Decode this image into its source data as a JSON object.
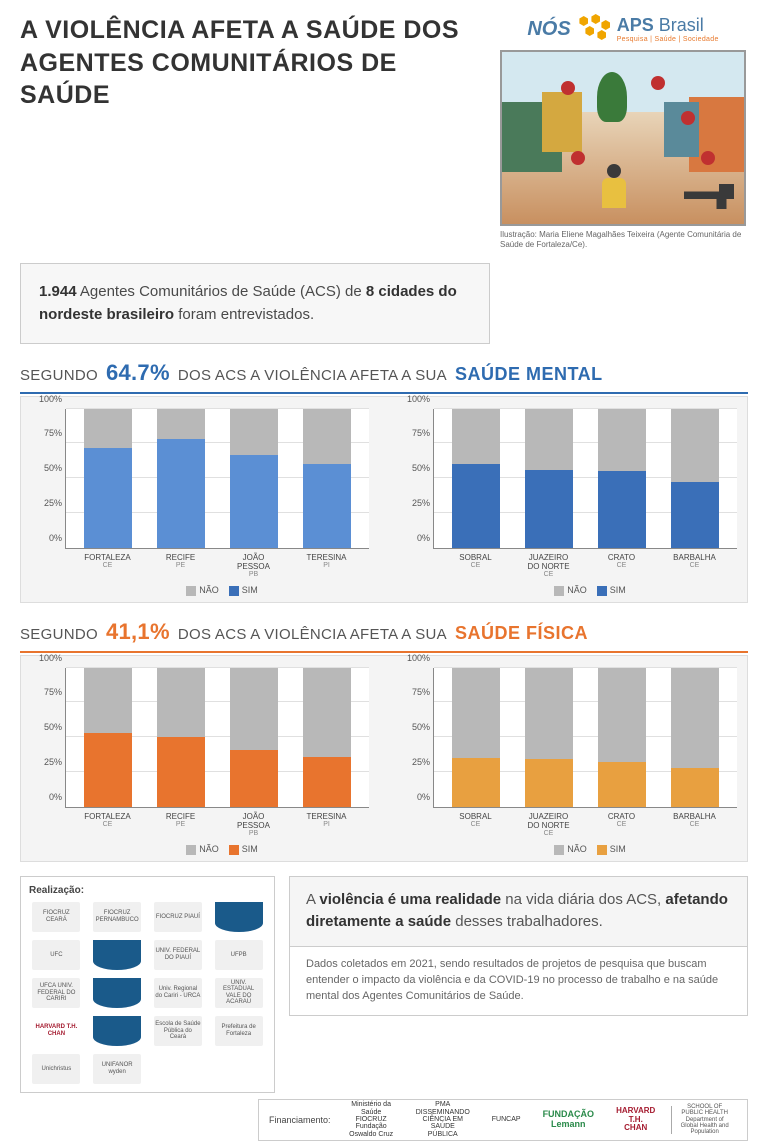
{
  "title": "A VIOLÊNCIA AFETA A SAÚDE DOS AGENTES COMUNITÁRIOS DE SAÚDE",
  "logo": {
    "nos": "NÓS",
    "aps": "APS",
    "brasil": "Brasil",
    "tagline": "Pesquisa | Saúde | Sociedade"
  },
  "illustration_caption": "Ilustração: Maria Eliene Magalhães Teixeira (Agente Comunitária de Saúde de Fortaleza/Ce).",
  "intro": {
    "count": "1.944",
    "text1": " Agentes Comunitários de Saúde (ACS) de ",
    "bold": "8 cidades do nordeste brasileiro",
    "text2": " foram entrevistados."
  },
  "mental": {
    "lead": "SEGUNDO",
    "pct": "64.7%",
    "mid": "DOS ACS A VIOLÊNCIA AFETA A SUA",
    "emph": "SAÚDE MENTAL",
    "yticks": [
      "0%",
      "25%",
      "50%",
      "75%",
      "100%"
    ],
    "legend_no": "NÃO",
    "legend_yes": "SIM",
    "left": {
      "color_class": "c-lblue",
      "bars": [
        {
          "city": "FORTALEZA",
          "st": "CE",
          "v": 72
        },
        {
          "city": "RECIFE",
          "st": "PE",
          "v": 78
        },
        {
          "city": "JOÃO PESSOA",
          "st": "PB",
          "v": 67
        },
        {
          "city": "TERESINA",
          "st": "PI",
          "v": 60
        }
      ]
    },
    "right": {
      "color_class": "c-dblue",
      "bars": [
        {
          "city": "SOBRAL",
          "st": "CE",
          "v": 60
        },
        {
          "city": "JUAZEIRO DO NORTE",
          "st": "CE",
          "v": 56
        },
        {
          "city": "CRATO",
          "st": "CE",
          "v": 55
        },
        {
          "city": "BARBALHA",
          "st": "CE",
          "v": 47
        }
      ]
    }
  },
  "fisica": {
    "lead": "SEGUNDO",
    "pct": "41,1%",
    "mid": "DOS ACS A VIOLÊNCIA AFETA A SUA",
    "emph": "SAÚDE FÍSICA",
    "yticks": [
      "0%",
      "25%",
      "50%",
      "75%",
      "100%"
    ],
    "legend_no": "NÃO",
    "legend_yes": "SIM",
    "left": {
      "color_class": "c-orange",
      "bars": [
        {
          "city": "FORTALEZA",
          "st": "CE",
          "v": 53
        },
        {
          "city": "RECIFE",
          "st": "PE",
          "v": 50
        },
        {
          "city": "JOÃO PESSOA",
          "st": "PB",
          "v": 41
        },
        {
          "city": "TERESINA",
          "st": "PI",
          "v": 36
        }
      ]
    },
    "right": {
      "color_class": "c-amber",
      "bars": [
        {
          "city": "SOBRAL",
          "st": "CE",
          "v": 35
        },
        {
          "city": "JUAZEIRO DO NORTE",
          "st": "CE",
          "v": 34
        },
        {
          "city": "CRATO",
          "st": "CE",
          "v": 32
        },
        {
          "city": "BARBALHA",
          "st": "CE",
          "v": 28
        }
      ]
    }
  },
  "realizacao": {
    "title": "Realização:",
    "logos": [
      "FIOCRUZ CEARÁ",
      "FIOCRUZ PERNAMBUCO",
      "FIOCRUZ PIAUÍ",
      "",
      "UFC",
      "",
      "UNIV. FEDERAL DO PIAUÍ",
      "UFPB",
      "UFCA UNIV. FEDERAL DO CARIRI",
      "",
      "Univ. Regional do Cariri - URCA",
      "UNIV. ESTADUAL VALE DO ACARAÚ",
      "HARVARD T.H. CHAN",
      "",
      "Escola de Saúde Pública do Ceará",
      "Prefeitura de Fortaleza",
      "Unichristus",
      "UNIFANOR wyden"
    ]
  },
  "conclusion": {
    "line1a": "A ",
    "line1b": "violência é uma realidade",
    "line1c": " na vida diária dos ACS, ",
    "line1d": "afetando diretamente a saúde",
    "line1e": " desses trabalhadores.",
    "sub": "Dados coletados em 2021, sendo resultados de projetos de pesquisa que buscam entender o impacto da violência e da COVID-19 no processo de trabalho e na saúde mental dos Agentes Comunitários de Saúde."
  },
  "funding": {
    "label": "Financiamento:",
    "logos": [
      "Ministério da Saúde FIOCRUZ Fundação Oswaldo Cruz",
      "PMA DISSEMINANDO CIÊNCIA EM SAÚDE PÚBLICA",
      "FUNCAP",
      "FUNDAÇÃO Lemann",
      "HARVARD T.H. CHAN",
      "SCHOOL OF PUBLIC HEALTH Department of Global Health and Population"
    ]
  }
}
